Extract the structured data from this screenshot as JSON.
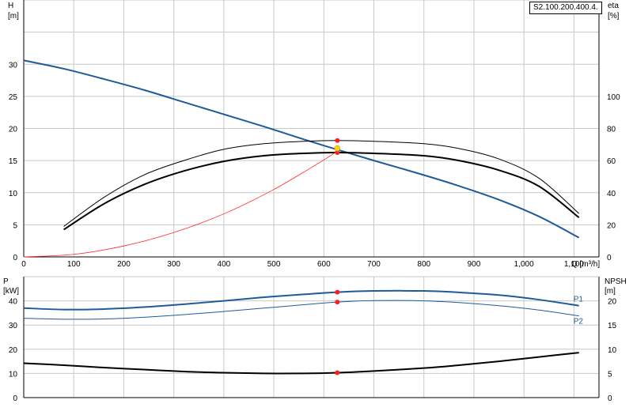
{
  "model": "S2.100.200.400.4.",
  "colors": {
    "background": "#ffffff",
    "grid": "#c8c8c8",
    "axis": "#000000",
    "head_curve": "#1f5b99",
    "efficiency_curve": "#000000",
    "system_curve": "#ff2a2a",
    "power_curve": "#1f5b99",
    "npsh_curve": "#000000",
    "operating_point": "#ff1e1e",
    "duty_point": "#ffd21a"
  },
  "chart_data": [
    {
      "type": "line",
      "xlabel": "Q [m³/h]",
      "ylabel_left": "H",
      "ylabel_left_unit": "[m]",
      "ylabel_right": "eta",
      "ylabel_right_unit": "[%]",
      "xlim": [
        0,
        1150
      ],
      "ylim_left": [
        0,
        40
      ],
      "ylim_right": [
        0,
        160
      ],
      "x_ticks": [
        0,
        100,
        200,
        300,
        400,
        500,
        600,
        700,
        800,
        900,
        1000,
        1100
      ],
      "x_tick_labels": [
        "0",
        "100",
        "200",
        "300",
        "400",
        "500",
        "600",
        "700",
        "800",
        "900",
        "1,000",
        "1,100"
      ],
      "left_ticks": [
        0,
        5,
        10,
        15,
        20,
        25,
        30
      ],
      "right_ticks": [
        0,
        20,
        40,
        60,
        80,
        100
      ],
      "grid": true,
      "series": [
        {
          "key": "head",
          "axis": "left",
          "x": [
            0,
            80,
            160,
            240,
            320,
            400,
            480,
            560,
            627,
            700,
            780,
            860,
            950,
            1030,
            1110
          ],
          "y": [
            30.6,
            29.3,
            27.7,
            26.0,
            24.1,
            22.2,
            20.3,
            18.3,
            16.7,
            15.0,
            13.2,
            11.3,
            8.9,
            6.3,
            3.0
          ]
        },
        {
          "key": "efficiency_p1",
          "axis": "right",
          "x": [
            80,
            160,
            240,
            320,
            400,
            480,
            560,
            627,
            700,
            800,
            870,
            950,
            1030,
            1110
          ],
          "y": [
            19,
            37,
            51,
            60,
            67,
            70.5,
            72,
            72.5,
            72,
            70.5,
            67.5,
            61,
            49,
            27
          ]
        },
        {
          "key": "efficiency_p2",
          "axis": "right",
          "x": [
            80,
            160,
            240,
            320,
            400,
            480,
            560,
            627,
            700,
            800,
            870,
            950,
            1030,
            1110
          ],
          "y": [
            17,
            33,
            45,
            53.5,
            59.5,
            63,
            64.5,
            65,
            64.5,
            63,
            60,
            54,
            44,
            24.5
          ]
        },
        {
          "key": "system",
          "axis": "left",
          "x": [
            0,
            100,
            200,
            300,
            400,
            500,
            600,
            627
          ],
          "y": [
            0,
            0.4,
            1.7,
            3.8,
            6.7,
            10.5,
            15.1,
            16.5
          ]
        }
      ],
      "points": [
        {
          "x": 627,
          "y": 72.5,
          "axis": "right",
          "kind": "operating"
        },
        {
          "x": 627,
          "y": 65,
          "axis": "right",
          "kind": "operating"
        },
        {
          "x": 627,
          "y": 16.9,
          "axis": "left",
          "kind": "duty"
        }
      ]
    },
    {
      "type": "line",
      "ylabel_left": "P",
      "ylabel_left_unit": "[kW]",
      "ylabel_right": "NPSH",
      "ylabel_right_unit": "[m]",
      "xlim": [
        0,
        1150
      ],
      "ylim_left": [
        0,
        50
      ],
      "ylim_right": [
        0,
        25
      ],
      "left_ticks": [
        0,
        10,
        20,
        30,
        40
      ],
      "right_ticks": [
        0,
        5,
        10,
        15,
        20
      ],
      "grid": true,
      "series": [
        {
          "key": "power_p1",
          "name": "P1",
          "axis": "left",
          "x": [
            0,
            80,
            160,
            240,
            320,
            400,
            480,
            560,
            627,
            700,
            800,
            870,
            950,
            1030,
            1110
          ],
          "y": [
            37,
            36.4,
            36.6,
            37.4,
            38.6,
            40.0,
            41.5,
            42.7,
            43.6,
            44.1,
            44.1,
            43.5,
            42.4,
            40.5,
            38.0
          ]
        },
        {
          "key": "power_p2",
          "name": "P2",
          "axis": "left",
          "x": [
            0,
            80,
            160,
            240,
            320,
            400,
            480,
            560,
            627,
            700,
            800,
            870,
            950,
            1030,
            1110
          ],
          "y": [
            32.8,
            32.4,
            32.5,
            33.2,
            34.3,
            35.6,
            37.0,
            38.4,
            39.5,
            40.1,
            40.0,
            39.3,
            38.0,
            36.2,
            33.8
          ]
        },
        {
          "key": "npsh",
          "axis": "right",
          "x": [
            0,
            80,
            160,
            240,
            320,
            400,
            480,
            560,
            627,
            700,
            800,
            870,
            950,
            1030,
            1110
          ],
          "y": [
            7.1,
            6.7,
            6.2,
            5.8,
            5.4,
            5.15,
            5.0,
            5.0,
            5.15,
            5.5,
            6.1,
            6.7,
            7.5,
            8.4,
            9.3
          ]
        }
      ],
      "points": [
        {
          "x": 627,
          "y": 43.6,
          "axis": "left",
          "kind": "operating"
        },
        {
          "x": 627,
          "y": 39.5,
          "axis": "left",
          "kind": "operating"
        },
        {
          "x": 627,
          "y": 5.15,
          "axis": "right",
          "kind": "operating"
        }
      ]
    }
  ]
}
